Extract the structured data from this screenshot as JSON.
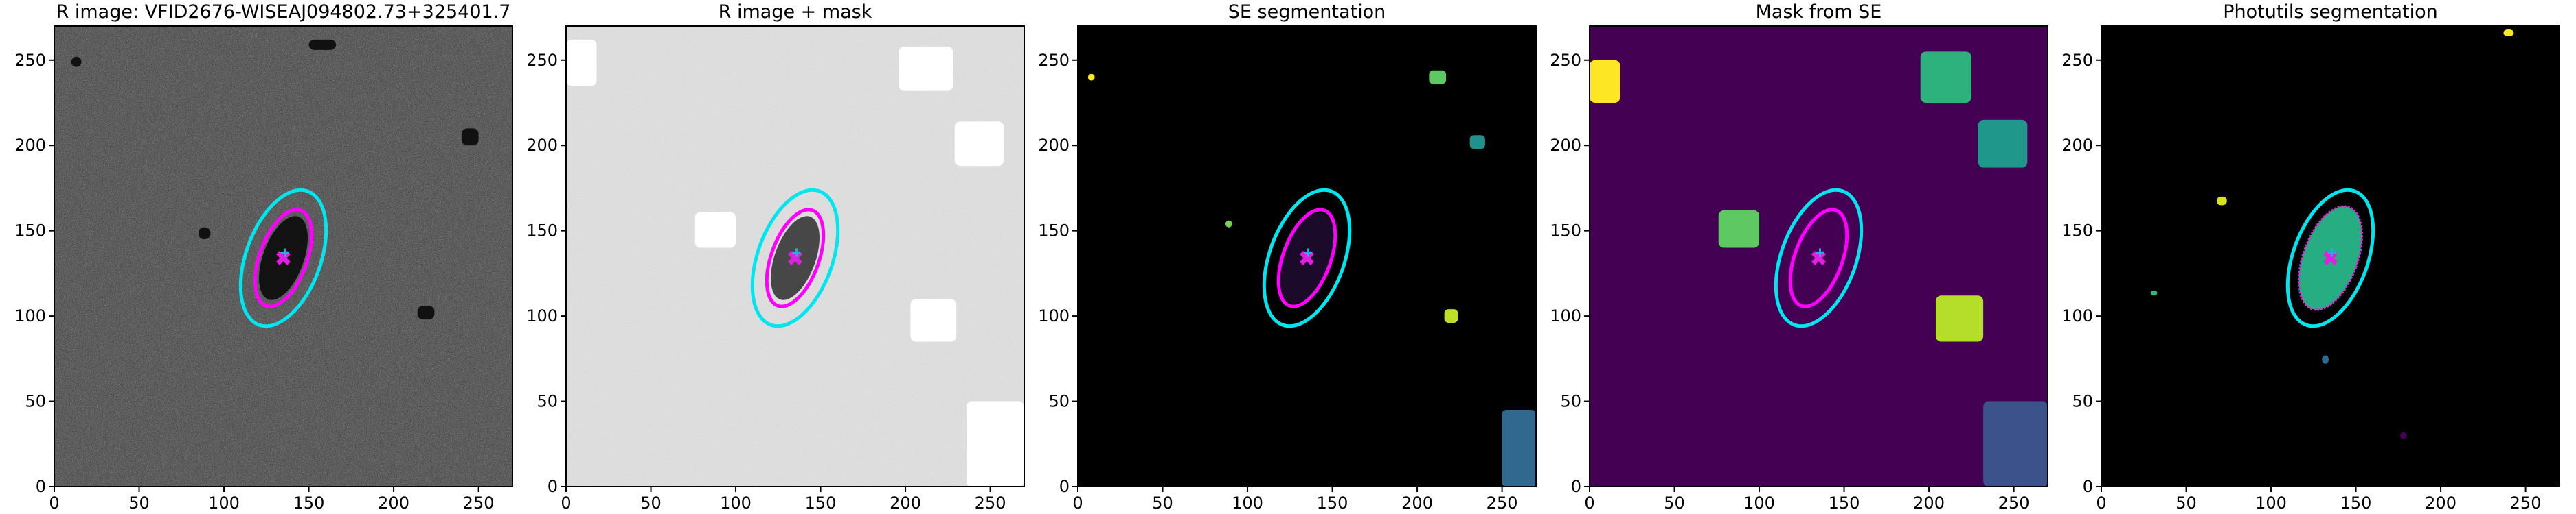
{
  "chart_data": [
    {
      "type": "image",
      "title": "R image: VFID2676-WISEAJ094802.73+325401.7",
      "xlim": [
        0,
        270
      ],
      "ylim": [
        0,
        270
      ],
      "xticks": [
        0,
        50,
        100,
        150,
        200,
        250
      ],
      "yticks": [
        0,
        50,
        100,
        150,
        200,
        250
      ]
    },
    {
      "type": "image",
      "title": "R image + mask",
      "xlim": [
        0,
        270
      ],
      "ylim": [
        0,
        270
      ],
      "xticks": [
        0,
        50,
        100,
        150,
        200,
        250
      ],
      "yticks": [
        0,
        50,
        100,
        150,
        200,
        250
      ]
    },
    {
      "type": "image",
      "title": "SE segmentation",
      "xlim": [
        0,
        270
      ],
      "ylim": [
        0,
        270
      ],
      "xticks": [
        0,
        50,
        100,
        150,
        200,
        250
      ],
      "yticks": [
        0,
        50,
        100,
        150,
        200,
        250
      ]
    },
    {
      "type": "image",
      "title": "Mask from SE",
      "xlim": [
        0,
        270
      ],
      "ylim": [
        0,
        270
      ],
      "xticks": [
        0,
        50,
        100,
        150,
        200,
        250
      ],
      "yticks": [
        0,
        50,
        100,
        150,
        200,
        250
      ]
    },
    {
      "type": "image",
      "title": "Photutils segmentation",
      "xlim": [
        0,
        270
      ],
      "ylim": [
        0,
        270
      ],
      "xticks": [
        0,
        50,
        100,
        150,
        200,
        250
      ],
      "yticks": [
        0,
        50,
        100,
        150,
        200,
        250
      ]
    }
  ]
}
